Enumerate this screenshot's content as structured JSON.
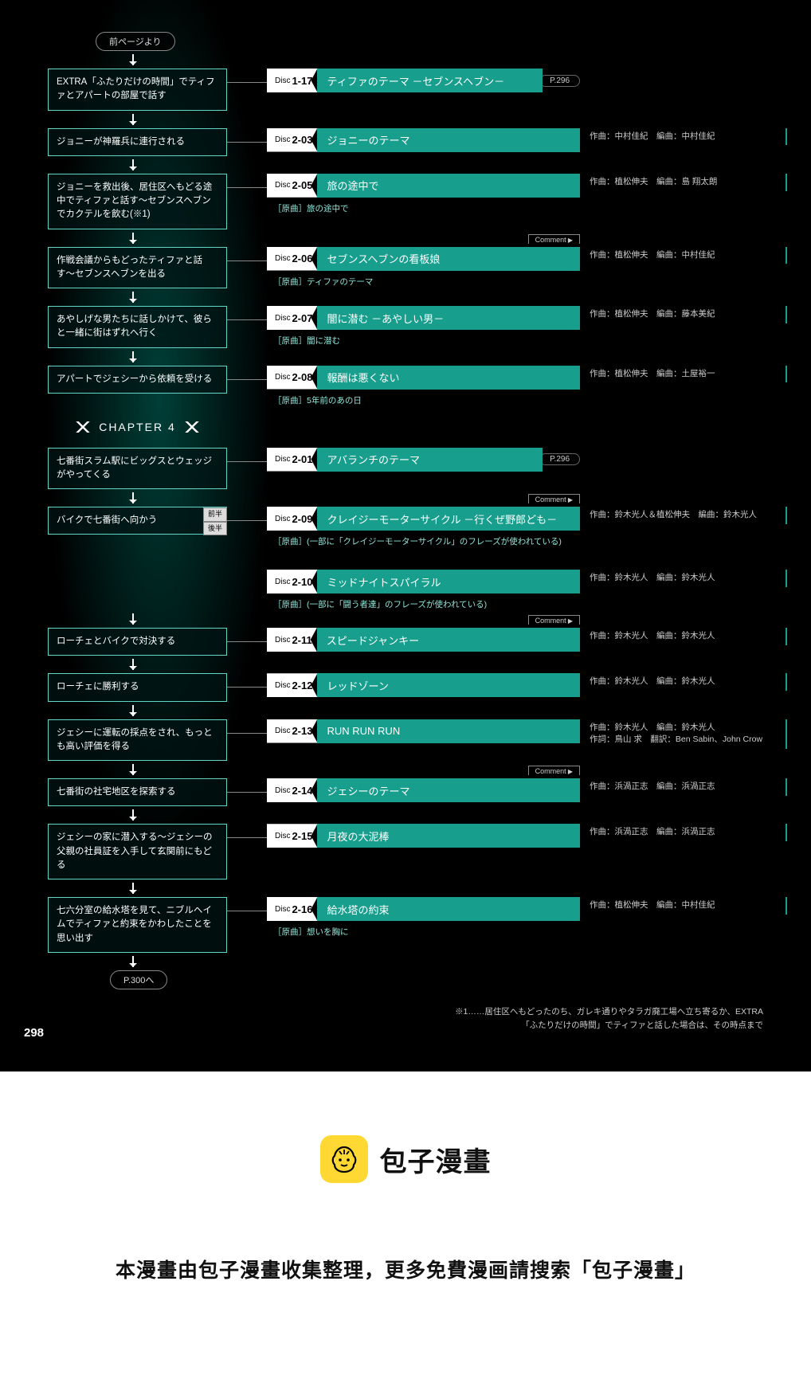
{
  "page_number": "298",
  "prev_label": "前ページより",
  "next_label": "P.300へ",
  "chapter_label": "CHAPTER 4",
  "comment_label": "Comment",
  "disc_word": "Disc",
  "half": {
    "first": "前半",
    "second": "後半"
  },
  "footnote": "※1……居住区へもどったのち、ガレキ通りやタラガ廃工場へ立ち寄るか、EXTRA\n「ふたりだけの時間」でティファと話した場合は、その時点まで",
  "colors": {
    "track_bg": "#179e8c",
    "box_border": "#5dd8c8",
    "origin_text": "#8ee5d8",
    "credit_text": "#cccccc",
    "disc_bg": "#ffffff",
    "background": "#000000"
  },
  "rows": [
    {
      "event": "EXTRA「ふたりだけの時間」でティファとアパートの部屋で話す",
      "event_h": "tall",
      "disc": "1-17",
      "title": "ティファのテーマ －セブンスヘブン－",
      "page_ref": "P.296"
    },
    {
      "event": "ジョニーが神羅兵に連行される",
      "disc": "2-03",
      "title": "ジョニーのテーマ",
      "credits": "作曲：中村佳紀　編曲：中村佳紀"
    },
    {
      "event": "ジョニーを救出後、居住区へもどる途中でティファと話す〜セブンスヘブンでカクテルを飲む(※1)",
      "event_h": "tall",
      "disc": "2-05",
      "title": "旅の途中で",
      "origin": "［原曲］旅の途中で",
      "credits": "作曲：植松伸夫　編曲：島 翔太朗"
    },
    {
      "event": "作戦会議からもどったティファと話す〜セブンスヘブンを出る",
      "event_h": "tall",
      "disc": "2-06",
      "title": "セブンスヘブンの看板娘",
      "origin": "［原曲］ティファのテーマ",
      "credits": "作曲：植松伸夫　編曲：中村佳紀",
      "comment": true
    },
    {
      "event": "あやしげな男たちに話しかけて、彼らと一緒に街はずれへ行く",
      "event_h": "tall",
      "disc": "2-07",
      "title": "闇に潜む －あやしい男－",
      "origin": "［原曲］闇に潜む",
      "credits": "作曲：植松伸夫　編曲：藤本美紀"
    },
    {
      "event": "アパートでジェシーから依頼を受ける",
      "disc": "2-08",
      "title": "報酬は悪くない",
      "origin": "［原曲］5年前のあの日",
      "credits": "作曲：植松伸夫　編曲：土屋裕一"
    },
    {
      "chapter": true
    },
    {
      "event": "七番街スラム駅にビッグスとウェッジがやってくる",
      "event_h": "tall",
      "disc": "2-01",
      "title": "アバランチのテーマ",
      "page_ref": "P.296"
    },
    {
      "spacer": 40
    },
    {
      "event": "バイクで七番街へ向かう",
      "half_tags": true,
      "branch": true,
      "disc": "2-09",
      "title": "クレイジーモーターサイクル －行くぜ野郎ども－",
      "origin": "［原曲］(一部に「クレイジーモーターサイクル」のフレーズが使われている)",
      "credits": "作曲：鈴木光人＆植松伸夫　編曲：鈴木光人",
      "comment": true
    },
    {
      "sub_track": true,
      "disc": "2-10",
      "title": "ミッドナイトスパイラル",
      "origin": "［原曲］(一部に「闘う者達」のフレーズが使われている)",
      "credits": "作曲：鈴木光人　編曲：鈴木光人"
    },
    {
      "spacer": 30
    },
    {
      "event": "ローチェとバイクで対決する",
      "disc": "2-11",
      "title": "スピードジャンキー",
      "credits": "作曲：鈴木光人　編曲：鈴木光人",
      "comment": true
    },
    {
      "event": "ローチェに勝利する",
      "disc": "2-12",
      "title": "レッドゾーン",
      "credits": "作曲：鈴木光人　編曲：鈴木光人"
    },
    {
      "event": "ジェシーに運転の採点をされ、もっとも高い評価を得る",
      "event_h": "tall",
      "disc": "2-13",
      "title": "RUN RUN RUN",
      "credits": "作曲：鈴木光人　編曲：鈴木光人\n作詞：鳥山 求　翻訳：Ben Sabin、John Crow"
    },
    {
      "spacer": 20
    },
    {
      "event": "七番街の社宅地区を探索する",
      "disc": "2-14",
      "title": "ジェシーのテーマ",
      "credits": "作曲：浜渦正志　編曲：浜渦正志",
      "comment": true
    },
    {
      "event": "ジェシーの家に潜入する〜ジェシーの父親の社員証を入手して玄関前にもどる",
      "event_h": "tall",
      "disc": "2-15",
      "title": "月夜の大泥棒",
      "credits": "作曲：浜渦正志　編曲：浜渦正志"
    },
    {
      "event": "七六分室の給水塔を見て、ニブルヘイムでティファと約束をかわしたことを思い出す",
      "event_h": "tall",
      "disc": "2-16",
      "title": "給水塔の約束",
      "origin": "［原曲］想いを胸に",
      "credits": "作曲：植松伸夫　編曲：中村佳紀"
    }
  ],
  "banner": {
    "title": "包子漫畫",
    "subtitle": "本漫畫由包子漫畫收集整理，更多免費漫画請搜索「包子漫畫」"
  }
}
